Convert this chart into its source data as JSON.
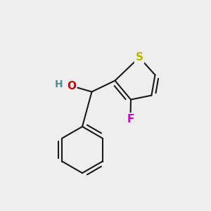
{
  "background_color": "#eeeeee",
  "bond_color": "#1a1a1a",
  "bond_width": 1.5,
  "S_color": "#b8b800",
  "O_color": "#cc0000",
  "F_color": "#cc00cc",
  "H_color": "#4a9090",
  "font_size_atom": 11,
  "S_label": "S",
  "O_label": "O",
  "F_label": "F",
  "H_label": "H",
  "figsize": [
    3.0,
    3.0
  ],
  "dpi": 100,
  "xlim": [
    0.0,
    1.0
  ],
  "ylim": [
    0.0,
    1.0
  ]
}
